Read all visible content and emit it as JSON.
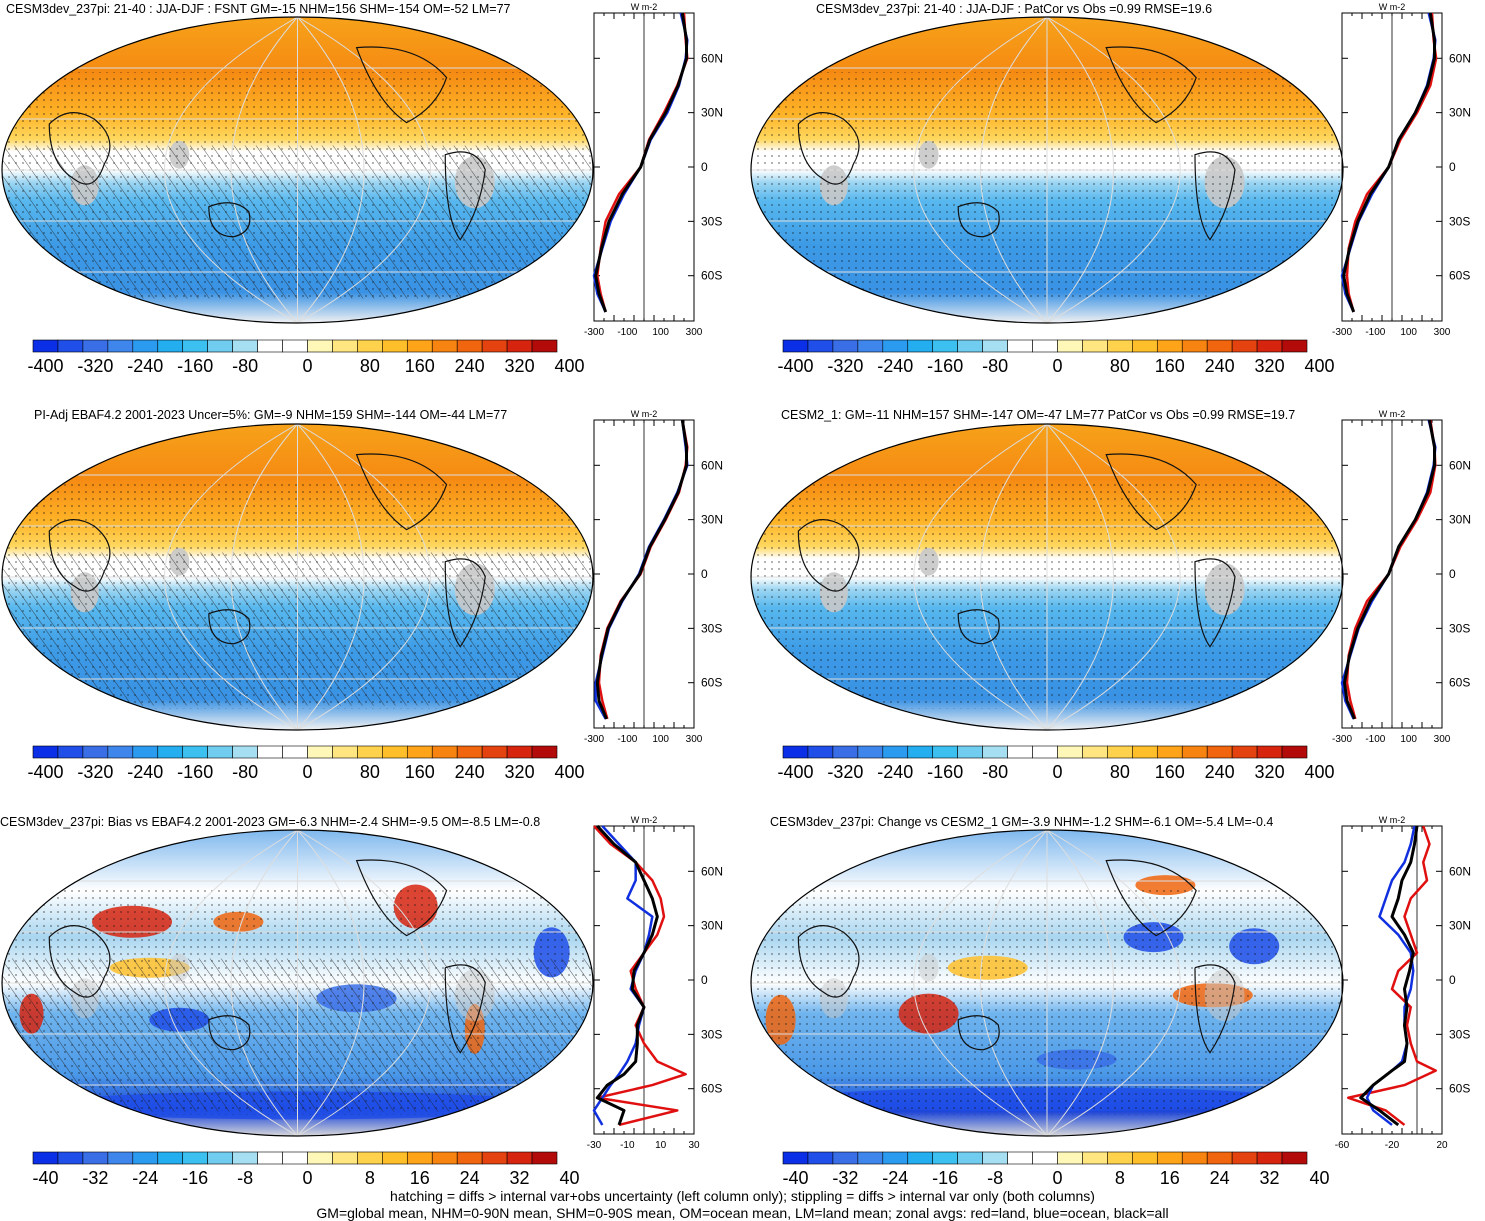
{
  "panels": [
    {
      "id": "top-left",
      "title": "CESM3dev_237pi: 21-40 : JJA-DJF : FSNT GM=-15 NHM=156 SHM=-154 OM=-52 LM=77",
      "hatching": true,
      "kind": "clim",
      "colorbar_labels": [
        "-400",
        "-320",
        "-240",
        "-160",
        "-80",
        "0",
        "80",
        "160",
        "240",
        "320",
        "400"
      ],
      "zonal_xticks": [
        "-300",
        "-100",
        "100",
        "300"
      ],
      "zonal_xlim": [
        -300,
        300
      ]
    },
    {
      "id": "top-right",
      "title": "CESM3dev_237pi: 21-40 : JJA-DJF : PatCor vs Obs =0.99 RMSE=19.6",
      "hatching": false,
      "kind": "clim",
      "colorbar_labels": [
        "-400",
        "-320",
        "-240",
        "-160",
        "-80",
        "0",
        "80",
        "160",
        "240",
        "320",
        "400"
      ],
      "zonal_xticks": [
        "-300",
        "-100",
        "100",
        "300"
      ],
      "zonal_xlim": [
        -300,
        300
      ]
    },
    {
      "id": "mid-left",
      "title": "PI-Adj EBAF4.2 2001-2023 Uncer=5%: GM=-9 NHM=159 SHM=-144 OM=-44 LM=77",
      "hatching": true,
      "kind": "clim",
      "colorbar_labels": [
        "-400",
        "-320",
        "-240",
        "-160",
        "-80",
        "0",
        "80",
        "160",
        "240",
        "320",
        "400"
      ],
      "zonal_xticks": [
        "-300",
        "-100",
        "100",
        "300"
      ],
      "zonal_xlim": [
        -300,
        300
      ]
    },
    {
      "id": "mid-right",
      "title": "CESM2_1: GM=-11 NHM=157 SHM=-147 OM=-47 LM=77 PatCor vs Obs =0.99 RMSE=19.7",
      "hatching": false,
      "kind": "clim",
      "colorbar_labels": [
        "-400",
        "-320",
        "-240",
        "-160",
        "-80",
        "0",
        "80",
        "160",
        "240",
        "320",
        "400"
      ],
      "zonal_xticks": [
        "-300",
        "-100",
        "100",
        "300"
      ],
      "zonal_xlim": [
        -300,
        300
      ]
    },
    {
      "id": "bottom-left",
      "title": "CESM3dev_237pi: Bias vs EBAF4.2 2001-2023 GM=-6.3 NHM=-2.4 SHM=-9.5 OM=-8.5 LM=-0.8",
      "hatching": true,
      "kind": "bias",
      "colorbar_labels": [
        "-40",
        "-32",
        "-24",
        "-16",
        "-8",
        "0",
        "8",
        "16",
        "24",
        "32",
        "40"
      ],
      "zonal_xticks": [
        "-30",
        "-10",
        "10",
        "30"
      ],
      "zonal_xlim": [
        -30,
        30
      ]
    },
    {
      "id": "bottom-right",
      "title": "CESM3dev_237pi: Change vs CESM2_1 GM=-3.9 NHM=-1.2 SHM=-6.1 OM=-5.4 LM=-0.4",
      "hatching": false,
      "kind": "change",
      "colorbar_labels": [
        "-40",
        "-32",
        "-24",
        "-16",
        "-8",
        "0",
        "8",
        "16",
        "24",
        "32",
        "40"
      ],
      "zonal_xticks": [
        "-60",
        "-20",
        "20"
      ],
      "zonal_xlim": [
        -60,
        20
      ]
    }
  ],
  "zonal_units": "W m-2",
  "zonal_lat_labels": [
    "60N",
    "30N",
    "0",
    "30S",
    "60S"
  ],
  "colorbar_colors": [
    "#0a2fe6",
    "#1f4ee8",
    "#3a6ee6",
    "#3f86ec",
    "#2b9bf0",
    "#24aef0",
    "#3cc0f0",
    "#70cdf0",
    "#a6dff2",
    "#ffffff",
    "#ffffff",
    "#fff7b8",
    "#ffe680",
    "#ffd24d",
    "#ffbf2a",
    "#ffa319",
    "#f78410",
    "#f0650e",
    "#e4430f",
    "#d7240f",
    "#b30a0a"
  ],
  "chart_data": [
    {
      "type": "line",
      "panel": "top-left",
      "ylabel": "",
      "xlabel": "W m-2",
      "y_lat": [
        85,
        70,
        60,
        45,
        30,
        15,
        0,
        -15,
        -30,
        -45,
        -60,
        -70,
        -80
      ],
      "series": [
        {
          "name": "red=land",
          "values": [
            240,
            250,
            260,
            200,
            120,
            30,
            -20,
            -150,
            -230,
            -260,
            -280,
            -260,
            -230
          ]
        },
        {
          "name": "blue=ocean",
          "values": [
            220,
            260,
            250,
            210,
            140,
            40,
            -20,
            -120,
            -200,
            -250,
            -300,
            -280,
            -230
          ]
        },
        {
          "name": "black=all",
          "values": [
            230,
            255,
            255,
            205,
            130,
            35,
            -20,
            -130,
            -210,
            -255,
            -290,
            -270,
            -230
          ]
        }
      ]
    },
    {
      "type": "line",
      "panel": "top-right",
      "xlabel": "W m-2",
      "y_lat": [
        85,
        70,
        60,
        45,
        30,
        15,
        0,
        -15,
        -30,
        -45,
        -60,
        -70,
        -80
      ],
      "series": [
        {
          "name": "red=land",
          "values": [
            240,
            250,
            265,
            230,
            150,
            50,
            -20,
            -150,
            -220,
            -260,
            -270,
            -260,
            -230
          ]
        },
        {
          "name": "blue=ocean",
          "values": [
            220,
            260,
            250,
            210,
            140,
            40,
            -20,
            -120,
            -200,
            -250,
            -300,
            -280,
            -230
          ]
        },
        {
          "name": "black=all",
          "values": [
            230,
            255,
            255,
            215,
            140,
            40,
            -20,
            -130,
            -205,
            -255,
            -290,
            -270,
            -230
          ]
        }
      ]
    },
    {
      "type": "line",
      "panel": "mid-left",
      "xlabel": "W m-2",
      "y_lat": [
        85,
        70,
        60,
        45,
        30,
        15,
        0,
        -15,
        -30,
        -45,
        -60,
        -70,
        -80
      ],
      "series": [
        {
          "name": "red=land",
          "values": [
            230,
            260,
            250,
            210,
            130,
            40,
            -20,
            -140,
            -220,
            -260,
            -270,
            -250,
            -220
          ]
        },
        {
          "name": "blue=ocean",
          "values": [
            230,
            250,
            260,
            200,
            120,
            30,
            -30,
            -130,
            -210,
            -250,
            -290,
            -290,
            -230
          ]
        },
        {
          "name": "black=all",
          "values": [
            230,
            255,
            255,
            205,
            125,
            35,
            -25,
            -135,
            -215,
            -255,
            -280,
            -270,
            -225
          ]
        }
      ]
    },
    {
      "type": "line",
      "panel": "mid-right",
      "xlabel": "W m-2",
      "y_lat": [
        85,
        70,
        60,
        45,
        30,
        15,
        0,
        -15,
        -30,
        -45,
        -60,
        -70,
        -80
      ],
      "series": [
        {
          "name": "red=land",
          "values": [
            230,
            255,
            260,
            230,
            150,
            50,
            -20,
            -150,
            -220,
            -260,
            -270,
            -250,
            -220
          ]
        },
        {
          "name": "blue=ocean",
          "values": [
            220,
            260,
            250,
            210,
            140,
            40,
            -20,
            -120,
            -200,
            -250,
            -300,
            -280,
            -230
          ]
        },
        {
          "name": "black=all",
          "values": [
            225,
            255,
            255,
            215,
            140,
            40,
            -20,
            -130,
            -205,
            -255,
            -285,
            -270,
            -225
          ]
        }
      ]
    },
    {
      "type": "line",
      "panel": "bottom-left",
      "xlabel": "W m-2",
      "y_lat": [
        85,
        75,
        65,
        55,
        45,
        35,
        25,
        15,
        5,
        -5,
        -15,
        -25,
        -35,
        -45,
        -52,
        -58,
        -65,
        -72,
        -80
      ],
      "series": [
        {
          "name": "red=land",
          "values": [
            -30,
            -20,
            -5,
            5,
            10,
            12,
            8,
            0,
            -8,
            -5,
            0,
            -5,
            0,
            8,
            25,
            5,
            -28,
            20,
            -15
          ]
        },
        {
          "name": "blue=ocean",
          "values": [
            -25,
            -15,
            -5,
            -5,
            -10,
            5,
            3,
            0,
            -5,
            -8,
            0,
            -3,
            -5,
            -10,
            -15,
            -20,
            -25,
            -30,
            -25
          ]
        },
        {
          "name": "black=all",
          "values": [
            -28,
            -18,
            -5,
            0,
            5,
            8,
            5,
            0,
            -6,
            -7,
            0,
            -4,
            -4,
            -5,
            -12,
            -22,
            -28,
            -12,
            -15
          ]
        }
      ]
    },
    {
      "type": "line",
      "panel": "bottom-right",
      "xlabel": "W m-2",
      "y_lat": [
        85,
        75,
        65,
        55,
        45,
        35,
        25,
        15,
        5,
        -5,
        -15,
        -25,
        -35,
        -45,
        -50,
        -58,
        -65,
        -72,
        -80
      ],
      "series": [
        {
          "name": "red=land",
          "values": [
            5,
            10,
            5,
            8,
            -5,
            -10,
            -5,
            0,
            -15,
            -20,
            -5,
            -8,
            -5,
            0,
            15,
            -10,
            -55,
            -25,
            -10
          ]
        },
        {
          "name": "blue=ocean",
          "values": [
            -2,
            -5,
            -10,
            -20,
            -25,
            -30,
            -15,
            -5,
            -3,
            -5,
            -10,
            -10,
            -8,
            -12,
            -20,
            -35,
            -40,
            -35,
            -20
          ]
        },
        {
          "name": "black=all",
          "values": [
            0,
            -2,
            -5,
            -12,
            -15,
            -20,
            -10,
            -3,
            -6,
            -10,
            -8,
            -10,
            -8,
            -10,
            -20,
            -35,
            -45,
            -30,
            -15
          ]
        }
      ]
    }
  ],
  "footer": {
    "line1": "hatching = diffs > internal var+obs uncertainty (left column only); stippling = diffs > internal var only (both columns)",
    "line2": "GM=global mean, NHM=0-90N mean, SHM=0-90S mean, OM=ocean mean, LM=land mean; zonal avgs: red=land, blue=ocean, black=all"
  }
}
